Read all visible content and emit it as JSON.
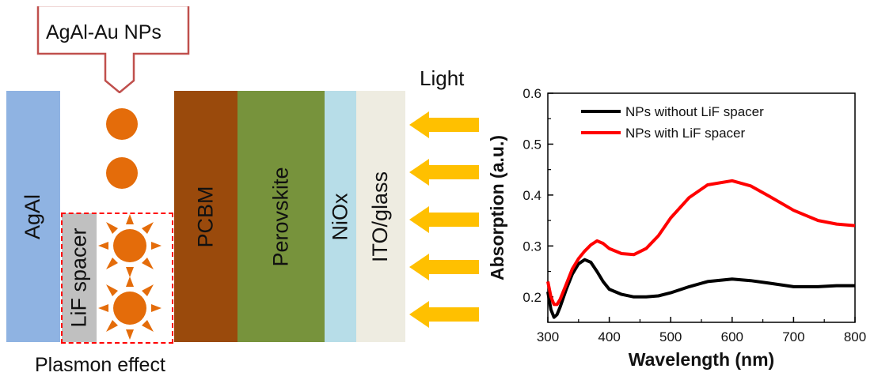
{
  "diagram": {
    "callout_label": "AgAl-Au NPs",
    "light_label": "Light",
    "plasmon_label": "Plasmon effect",
    "layers": {
      "agal": "AgAl",
      "lif": "LiF spacer",
      "pcbm": "PCBM",
      "perovskite": "Perovskite",
      "niox": "NiOx",
      "ito": "ITO/glass"
    },
    "colors": {
      "agal": "#8fb3e2",
      "lif": "#c0c0c0",
      "pcbm": "#9a4a0c",
      "perovskite": "#77933c",
      "niox": "#b7dde8",
      "ito": "#eeece1",
      "nanoparticle": "#e46c0a",
      "arrow": "#ffc000",
      "callout_border": "#c0504d",
      "dash_border": "#ff0000"
    },
    "light_arrow_count": 5
  },
  "chart_data": {
    "type": "line",
    "xlabel": "Wavelength (nm)",
    "ylabel": "Absorption (a.u.)",
    "xlim": [
      300,
      800
    ],
    "ylim": [
      0.15,
      0.6
    ],
    "x_ticks": [
      "300",
      "400",
      "500",
      "600",
      "700",
      "800"
    ],
    "y_ticks": [
      "0.2",
      "0.3",
      "0.4",
      "0.5",
      "0.6"
    ],
    "legend_position": "top-right",
    "series": [
      {
        "name": "NPs without LiF spacer",
        "color": "#000000",
        "x": [
          300,
          305,
          310,
          315,
          320,
          330,
          340,
          350,
          360,
          370,
          380,
          390,
          400,
          420,
          440,
          460,
          480,
          500,
          530,
          560,
          600,
          630,
          660,
          700,
          740,
          770,
          800
        ],
        "y": [
          0.21,
          0.175,
          0.16,
          0.165,
          0.18,
          0.215,
          0.245,
          0.265,
          0.273,
          0.268,
          0.25,
          0.23,
          0.215,
          0.205,
          0.2,
          0.2,
          0.202,
          0.208,
          0.22,
          0.23,
          0.235,
          0.232,
          0.227,
          0.22,
          0.22,
          0.222,
          0.222
        ]
      },
      {
        "name": "NPs with LiF spacer",
        "color": "#ff0000",
        "x": [
          300,
          305,
          310,
          315,
          320,
          330,
          340,
          350,
          360,
          370,
          380,
          390,
          400,
          420,
          440,
          460,
          480,
          500,
          530,
          560,
          600,
          630,
          660,
          700,
          740,
          770,
          800
        ],
        "y": [
          0.23,
          0.2,
          0.185,
          0.185,
          0.195,
          0.225,
          0.255,
          0.275,
          0.29,
          0.302,
          0.31,
          0.305,
          0.295,
          0.285,
          0.283,
          0.295,
          0.32,
          0.355,
          0.395,
          0.42,
          0.428,
          0.418,
          0.398,
          0.37,
          0.35,
          0.343,
          0.34
        ]
      }
    ]
  }
}
